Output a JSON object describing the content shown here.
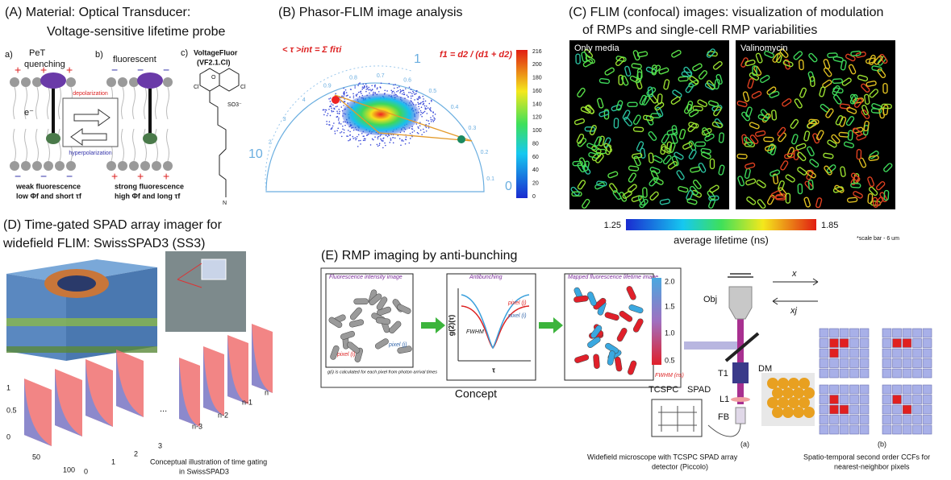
{
  "panel_a": {
    "title": [
      "(A) Material: Optical Transducer:",
      "Voltage-sensitive lifetime probe"
    ],
    "labels": {
      "a": "a)",
      "pet": "PeT",
      "quenching": "quenching",
      "b": "b)",
      "fluorescent": "fluorescent",
      "c": "c)",
      "dye_name": "VoltageFluor",
      "dye_code": "(VF2.1.Cl)",
      "depolarization": "depolarization",
      "hyperpolarization": "hyperpolarization",
      "weak": "weak fluorescence",
      "weak_detail": "low Φf and short τf",
      "strong": "strong fluorescence",
      "strong_detail": "high Φf and long τf",
      "electron": "e⁻",
      "plus": "+",
      "minus": "−"
    },
    "chem": [
      "Cl",
      "O",
      "Cl",
      "SO3⁻",
      "N"
    ]
  },
  "panel_b": {
    "title": "(B) Phasor-FLIM image analysis",
    "eq_tau": "< τ >int = Σ fiτi",
    "eq_f1": "f1 = d2 / (d1 + d2)",
    "colorbar_ticks": [
      "216",
      "200",
      "180",
      "160",
      "140",
      "120",
      "100",
      "80",
      "60",
      "40",
      "20",
      "0"
    ],
    "arc_labels": [
      "1",
      "10",
      "0"
    ],
    "arc_ticks": [
      "2",
      "3",
      "4",
      "0.9",
      "0.8",
      "0.7",
      "0.6",
      "0.5",
      "0.4",
      "0.3",
      "0.2",
      "0.1"
    ]
  },
  "panel_c": {
    "title": [
      "(C) FLIM (confocal) images: visualization of modulation",
      "of RMPs and single-cell RMP variabilities"
    ],
    "left_label": "Only media",
    "right_label": "Valinomycin",
    "cbar_min": "1.25",
    "cbar_max": "1.85",
    "cbar_label": "average lifetime (ns)",
    "scale_note": "*scale bar - 6 um"
  },
  "panel_d": {
    "title": [
      "(D) Time-gated SPAD array imager for",
      "widefield FLIM: SwissSPAD3 (SS3)"
    ],
    "y_ticks": [
      "1",
      "0.5",
      "0"
    ],
    "x_ticks": [
      "50",
      "100"
    ],
    "z_ticks": [
      "0",
      "1",
      "2",
      "3"
    ],
    "gate_labels": [
      "n-3",
      "n-2",
      "n-1",
      "n"
    ],
    "ellipsis": "...",
    "caption": [
      "Conceptual illustration of time gating",
      "in SwissSPAD3"
    ]
  },
  "panel_e": {
    "title": "(E) RMP imaging by anti-bunching",
    "box_titles": [
      "Fluorescence intensity image",
      "Antibunching",
      "Mapped fluorescence lifetime image"
    ],
    "note": "g(i) is calculated for each pixel from photon arrival times",
    "pixel_i": "pixel (i)",
    "pixel_j": "pixel (j)",
    "g2": "g(2)(τ)",
    "tau": "τ",
    "fwhm": "FWHM",
    "cbar_ticks": [
      "2.0",
      "1.5",
      "1.0",
      "0.5"
    ],
    "cbar_label": "FWHM (ns)",
    "concept": "Concept",
    "setup": {
      "obj": "Obj",
      "dm": "DM",
      "t1": "T1",
      "l1": "L1",
      "fb": "FB",
      "tcspc": "TCSPC",
      "spad": "SPAD",
      "x": "x",
      "xj": "xj"
    },
    "sub_a": "(a)",
    "sub_b": "(b)",
    "caption_a": [
      "Widefield microscope with TCSPC SPAD array",
      "detector (Piccolo)"
    ],
    "caption_b": [
      "Spatio-temporal second order CCFs for",
      "nearest-neighbor pixels"
    ]
  }
}
